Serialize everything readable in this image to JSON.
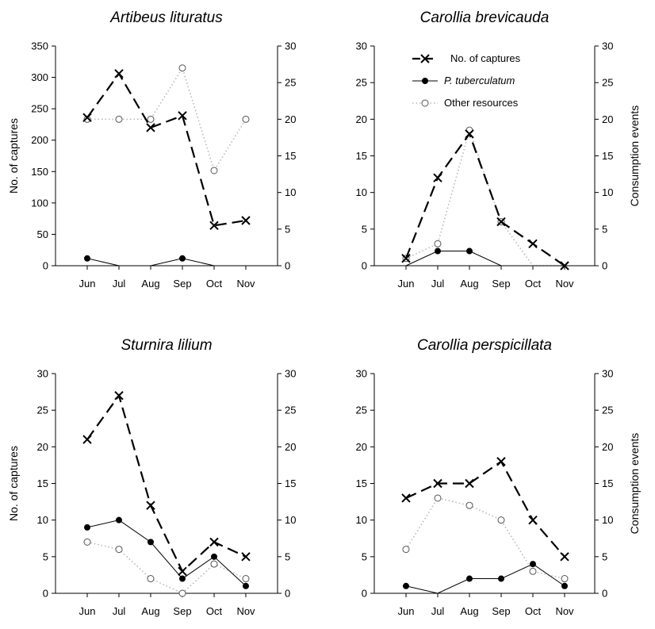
{
  "figure": {
    "background": "#ffffff",
    "ink": "#000000",
    "other_color": "#b8b8b8"
  },
  "legend": {
    "captures": "No. of captures",
    "tuberculatum": "P. tuberculatum",
    "other": "Other resources"
  },
  "chart_data": [
    {
      "type": "line",
      "title": "Artibeus lituratus",
      "categories": [
        "Jun",
        "Jul",
        "Aug",
        "Sep",
        "Oct",
        "Nov"
      ],
      "ylabel": "No. of captures",
      "y2label": "",
      "ylim": [
        0,
        350
      ],
      "yticks": [
        0,
        50,
        100,
        150,
        200,
        250,
        300,
        350
      ],
      "y2lim": [
        0,
        30
      ],
      "y2ticks": [
        0,
        5,
        10,
        15,
        20,
        25,
        30
      ],
      "captures": [
        236,
        306,
        220,
        239,
        64,
        72
      ],
      "tuberculatum": [
        1,
        0,
        0,
        1,
        0,
        0
      ],
      "other": [
        20,
        20,
        20,
        27,
        13,
        20
      ]
    },
    {
      "type": "line",
      "title": "Carollia brevicauda",
      "categories": [
        "Jun",
        "Jul",
        "Aug",
        "Sep",
        "Oct",
        "Nov"
      ],
      "ylabel": "",
      "y2label": "Consumption events",
      "ylim": [
        0,
        30
      ],
      "yticks": [
        0,
        5,
        10,
        15,
        20,
        25,
        30
      ],
      "y2lim": [
        0,
        30
      ],
      "y2ticks": [
        0,
        5,
        10,
        15,
        20,
        25,
        30
      ],
      "captures": [
        1,
        12,
        18,
        6,
        3,
        0
      ],
      "tuberculatum": [
        0,
        2,
        2,
        0,
        0,
        0
      ],
      "other": [
        1,
        3,
        18.5,
        6,
        0,
        0
      ],
      "other_mask": [
        true,
        true,
        true,
        true,
        false,
        false
      ]
    },
    {
      "type": "line",
      "title": "Sturnira lilium",
      "categories": [
        "Jun",
        "Jul",
        "Aug",
        "Sep",
        "Oct",
        "Nov"
      ],
      "ylabel": "No. of captures",
      "y2label": "",
      "ylim": [
        0,
        30
      ],
      "yticks": [
        0,
        5,
        10,
        15,
        20,
        25,
        30
      ],
      "y2lim": [
        0,
        30
      ],
      "y2ticks": [
        0,
        5,
        10,
        15,
        20,
        25,
        30
      ],
      "captures": [
        21,
        27,
        12,
        3,
        7,
        5
      ],
      "tuberculatum": [
        9,
        10,
        7,
        2,
        5,
        1
      ],
      "other": [
        7,
        6,
        2,
        0,
        4,
        2
      ]
    },
    {
      "type": "line",
      "title": "Carollia perspicillata",
      "categories": [
        "Jun",
        "Jul",
        "Aug",
        "Sep",
        "Oct",
        "Nov"
      ],
      "ylabel": "",
      "y2label": "Consumption events",
      "ylim": [
        0,
        30
      ],
      "yticks": [
        0,
        5,
        10,
        15,
        20,
        25,
        30
      ],
      "y2lim": [
        0,
        30
      ],
      "y2ticks": [
        0,
        5,
        10,
        15,
        20,
        25,
        30
      ],
      "captures": [
        13,
        15,
        15,
        18,
        10,
        5
      ],
      "tuberculatum": [
        1,
        0,
        2,
        2,
        4,
        1
      ],
      "other": [
        6,
        13,
        12,
        10,
        3,
        2
      ]
    }
  ]
}
